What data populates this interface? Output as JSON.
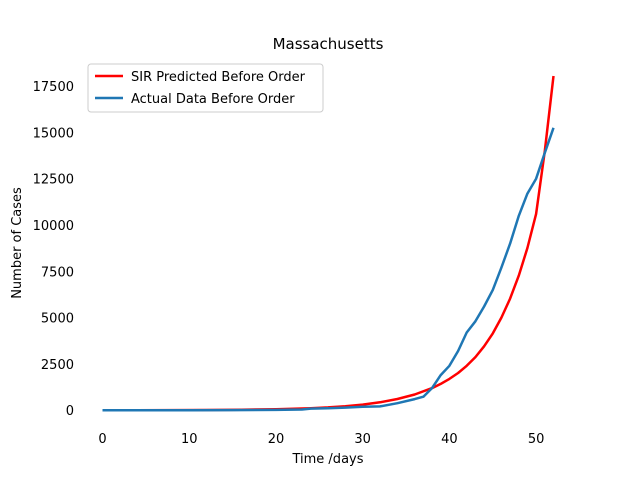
{
  "chart_data": {
    "type": "line",
    "title": "Massachusetts",
    "xlabel": "Time /days",
    "ylabel": "Number of Cases",
    "xlim": [
      -2.6,
      54.6
    ],
    "ylim": [
      -905,
      19020
    ],
    "xticks": [
      0,
      10,
      20,
      30,
      40,
      50
    ],
    "yticks": [
      0,
      2500,
      5000,
      7500,
      10000,
      12500,
      15000,
      17500
    ],
    "grid": false,
    "legend_position": "top-left",
    "series": [
      {
        "name": "SIR Predicted Before Order",
        "color": "#ff0000",
        "x": [
          0,
          4,
          8,
          12,
          16,
          20,
          22,
          24,
          26,
          28,
          30,
          32,
          34,
          36,
          38,
          39,
          40,
          41,
          42,
          43,
          44,
          45,
          46,
          47,
          48,
          49,
          50,
          51,
          52
        ],
        "y": [
          0,
          3,
          7,
          14,
          28,
          56,
          78,
          110,
          155,
          218,
          306,
          430,
          605,
          850,
          1195,
          1420,
          1690,
          2010,
          2400,
          2870,
          3450,
          4150,
          5000,
          6030,
          7270,
          8760,
          10600,
          14000,
          18050
        ]
      },
      {
        "name": "Actual Data Before Order",
        "color": "#1f77b4",
        "x": [
          0,
          5,
          10,
          15,
          20,
          23,
          24,
          26,
          28,
          30,
          32,
          34,
          36,
          37,
          38,
          39,
          40,
          41,
          42,
          43,
          44,
          45,
          46,
          47,
          48,
          49,
          50,
          51,
          52
        ],
        "y": [
          0,
          0,
          0,
          5,
          20,
          40,
          90,
          110,
          140,
          190,
          210,
          380,
          600,
          730,
          1200,
          1900,
          2400,
          3200,
          4200,
          4800,
          5600,
          6500,
          7700,
          9000,
          10500,
          11700,
          12500,
          13900,
          15250
        ]
      }
    ]
  }
}
